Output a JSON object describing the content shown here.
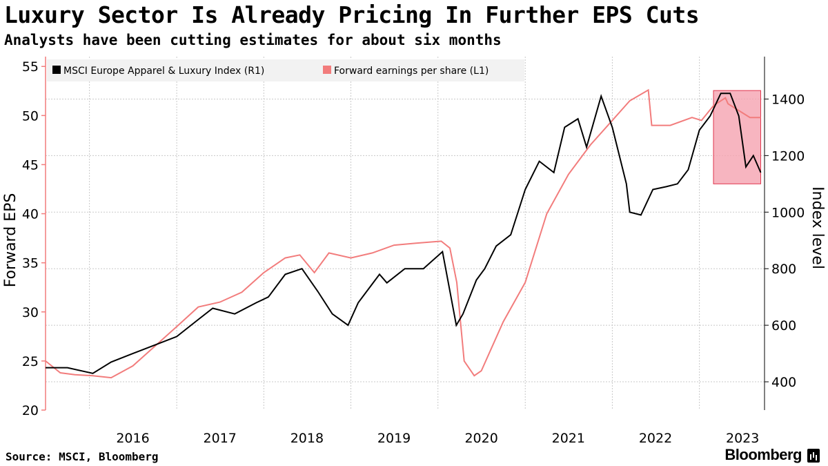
{
  "header": {
    "title": "Luxury Sector Is Already Pricing In Further EPS Cuts",
    "subtitle": "Analysts have been cutting estimates for about six months"
  },
  "footer": {
    "source": "Source: MSCI, Bloomberg",
    "brand": "Bloomberg"
  },
  "colors": {
    "index_line": "#000000",
    "eps_line": "#f27c7c",
    "highlight_fill": "#f5a3b0",
    "highlight_stroke": "#e0334b",
    "grid": "#c8c8c8",
    "legend_bg": "#f2f2f2"
  },
  "chart_data": {
    "type": "line",
    "title": "Luxury Sector Is Already Pricing In Further EPS Cuts",
    "subtitle": "Analysts have been cutting estimates for about six months",
    "xlabel": "",
    "ylabel_left": "Forward EPS",
    "ylabel_right": "Index level",
    "x_ticks": [
      "2016",
      "2017",
      "2018",
      "2019",
      "2020",
      "2021",
      "2022",
      "2023"
    ],
    "xlim": [
      "2015-07-01",
      "2023-10-01"
    ],
    "ylim_left": [
      20,
      56
    ],
    "ylim_right": [
      300,
      1550
    ],
    "y_ticks_left": [
      20,
      25,
      30,
      35,
      40,
      45,
      50,
      55
    ],
    "y_ticks_right": [
      400,
      600,
      800,
      1000,
      1200,
      1400
    ],
    "grid": true,
    "legend_position": "top-left",
    "highlight": {
      "x_start": "2023-03-01",
      "x_end": "2023-09-15",
      "y_right_range": [
        1100,
        1430
      ]
    },
    "series": [
      {
        "name": "MSCI Europe Apparel & Luxury Index  (R1)",
        "axis": "right",
        "x": [
          "2015-07-01",
          "2015-10-01",
          "2016-01-15",
          "2016-04-01",
          "2016-07-01",
          "2016-10-01",
          "2017-01-01",
          "2017-04-01",
          "2017-06-01",
          "2017-09-01",
          "2017-12-01",
          "2018-01-20",
          "2018-04-01",
          "2018-06-10",
          "2018-08-15",
          "2018-10-15",
          "2018-12-20",
          "2019-02-01",
          "2019-05-01",
          "2019-06-01",
          "2019-08-15",
          "2019-11-01",
          "2020-01-20",
          "2020-03-18",
          "2020-04-15",
          "2020-06-10",
          "2020-07-15",
          "2020-09-01",
          "2020-11-01",
          "2021-01-01",
          "2021-03-01",
          "2021-05-01",
          "2021-06-15",
          "2021-08-10",
          "2021-09-15",
          "2021-11-15",
          "2022-01-01",
          "2022-03-01",
          "2022-03-15",
          "2022-05-01",
          "2022-06-20",
          "2022-08-15",
          "2022-10-01",
          "2022-11-15",
          "2023-01-01",
          "2023-02-15",
          "2023-04-01",
          "2023-05-10",
          "2023-06-15",
          "2023-07-15",
          "2023-08-15",
          "2023-09-15"
        ],
        "values": [
          450,
          450,
          430,
          470,
          500,
          530,
          560,
          620,
          660,
          640,
          680,
          700,
          780,
          800,
          720,
          640,
          600,
          680,
          780,
          750,
          800,
          800,
          860,
          600,
          640,
          760,
          800,
          880,
          920,
          1080,
          1180,
          1140,
          1300,
          1330,
          1230,
          1410,
          1300,
          1100,
          1000,
          990,
          1080,
          1090,
          1100,
          1150,
          1290,
          1340,
          1420,
          1420,
          1340,
          1160,
          1200,
          1140
        ]
      },
      {
        "name": "Forward earnings per share (L1)",
        "axis": "left",
        "x": [
          "2015-07-01",
          "2015-09-01",
          "2015-11-01",
          "2016-01-15",
          "2016-04-01",
          "2016-07-01",
          "2016-10-01",
          "2017-01-01",
          "2017-04-01",
          "2017-07-01",
          "2017-10-01",
          "2018-01-01",
          "2018-04-01",
          "2018-06-01",
          "2018-08-01",
          "2018-10-01",
          "2019-01-01",
          "2019-04-01",
          "2019-07-01",
          "2019-10-01",
          "2020-01-15",
          "2020-02-20",
          "2020-03-20",
          "2020-04-20",
          "2020-06-01",
          "2020-07-01",
          "2020-10-01",
          "2021-01-01",
          "2021-04-01",
          "2021-07-01",
          "2021-10-01",
          "2022-01-01",
          "2022-03-15",
          "2022-06-01",
          "2022-06-15",
          "2022-09-01",
          "2022-12-01",
          "2023-01-10",
          "2023-03-01",
          "2023-04-20",
          "2023-05-01",
          "2023-08-01",
          "2023-09-15"
        ],
        "values": [
          25,
          23.8,
          23.6,
          23.5,
          23.3,
          24.5,
          26.5,
          28.5,
          30.5,
          31,
          32,
          34,
          35.5,
          35.8,
          34,
          36,
          35.5,
          36,
          36.8,
          37,
          37.2,
          36.5,
          33,
          25,
          23.5,
          24,
          29,
          33,
          40,
          44,
          47,
          49.5,
          51.5,
          52.6,
          49,
          49,
          49.8,
          49.5,
          51,
          51.8,
          51.2,
          49.8,
          49.8
        ]
      }
    ]
  },
  "legend": [
    {
      "label": "MSCI Europe Apparel & Luxury Index  (R1)",
      "color": "#000000"
    },
    {
      "label": "Forward earnings per share (L1)",
      "color": "#f27c7c"
    }
  ]
}
